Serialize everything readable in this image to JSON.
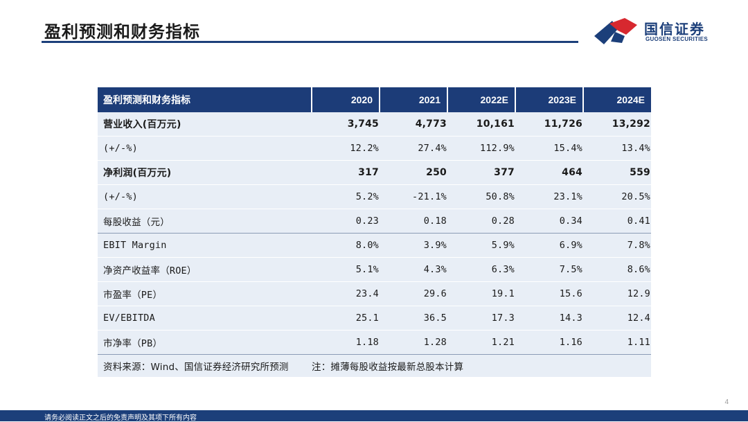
{
  "header": {
    "title": "盈利预测和财务指标",
    "logo_cn": "国信证券",
    "logo_en": "GUOSEN SECURITIES"
  },
  "table": {
    "columns": [
      "盈利预测和财务指标",
      "2020",
      "2021",
      "2022E",
      "2023E",
      "2024E"
    ],
    "rows": [
      {
        "label": "营业收入(百万元)",
        "values": [
          "3,745",
          "4,773",
          "10,161",
          "11,726",
          "13,292"
        ]
      },
      {
        "label": "(+/-%)",
        "values": [
          "12.2%",
          "27.4%",
          "112.9%",
          "15.4%",
          "13.4%"
        ]
      },
      {
        "label": "净利润(百万元)",
        "values": [
          "317",
          "250",
          "377",
          "464",
          "559"
        ]
      },
      {
        "label": "(+/-%)",
        "values": [
          "5.2%",
          "-21.1%",
          "50.8%",
          "23.1%",
          "20.5%"
        ]
      },
      {
        "label": "每股收益（元）",
        "values": [
          "0.23",
          "0.18",
          "0.28",
          "0.34",
          "0.41"
        ]
      },
      {
        "label": "EBIT  Margin",
        "values": [
          "8.0%",
          "3.9%",
          "5.9%",
          "6.9%",
          "7.8%"
        ]
      },
      {
        "label": "净资产收益率（ROE）",
        "values": [
          "5.1%",
          "4.3%",
          "6.3%",
          "7.5%",
          "8.6%"
        ]
      },
      {
        "label": "市盈率（PE）",
        "values": [
          "23.4",
          "29.6",
          "19.1",
          "15.6",
          "12.9"
        ]
      },
      {
        "label": "EV/EBITDA",
        "values": [
          "25.1",
          "36.5",
          "17.3",
          "14.3",
          "12.4"
        ]
      },
      {
        "label": "市净率（PB）",
        "values": [
          "1.18",
          "1.28",
          "1.21",
          "1.16",
          "1.11"
        ]
      }
    ],
    "source": "资料来源：Wind、国信证券经济研究所预测",
    "note": "注：摊薄每股收益按最新总股本计算"
  },
  "page_number": "4",
  "footer": {
    "disclaimer": "请务必阅读正文之后的免责声明及其项下所有内容"
  },
  "colors": {
    "brand_navy": "#1c3f7a",
    "brand_red": "#d7282f",
    "table_header_bg": "#1c3c78",
    "table_body_bg": "#e8eef6"
  }
}
